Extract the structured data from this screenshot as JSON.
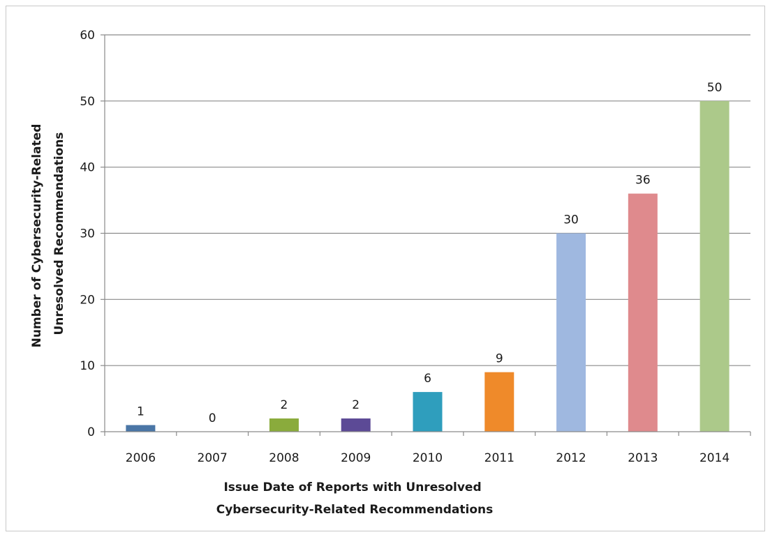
{
  "chart_data": {
    "type": "bar",
    "categories": [
      "2006",
      "2007",
      "2008",
      "2009",
      "2010",
      "2011",
      "2012",
      "2013",
      "2014"
    ],
    "values": [
      1,
      0,
      2,
      2,
      6,
      9,
      30,
      36,
      50
    ],
    "data_labels": [
      "1",
      "0",
      "2",
      "2",
      "6",
      "9",
      "30",
      "36",
      "50"
    ],
    "colors": [
      "#4a76a6",
      "#9e9e9e",
      "#8aab3c",
      "#5c4a96",
      "#2f9ebd",
      "#ef8a2a",
      "#9fb8e0",
      "#df8a8d",
      "#acc98a"
    ],
    "ylim": [
      0,
      60
    ],
    "yticks": [
      0,
      10,
      20,
      30,
      40,
      50,
      60
    ],
    "ytick_labels": [
      "0",
      "10",
      "20",
      "30",
      "40",
      "50",
      "60"
    ],
    "xlabel_lines": [
      "Issue Date of Reports with Unresolved",
      "Cybersecurity-Related Recommendations"
    ],
    "ylabel_lines": [
      "Number of Cybersecurity-Related",
      "Unresolved Recommendations"
    ],
    "grid": true,
    "legend": "none"
  }
}
